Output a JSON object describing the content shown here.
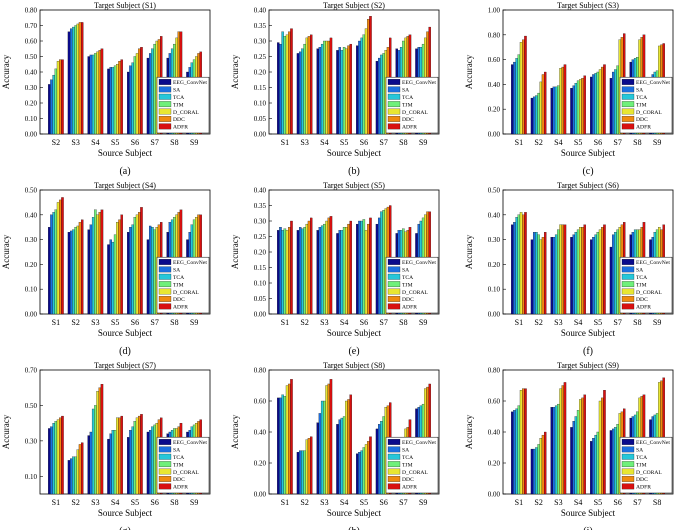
{
  "figure": {
    "y_axis_label": "Accuracy",
    "x_axis_label": "Source Subject",
    "colors": [
      "#0a0a8c",
      "#1c6fe0",
      "#25c7d9",
      "#6ff07a",
      "#e8e632",
      "#f08a10",
      "#d81010"
    ]
  },
  "chart_data": [
    {
      "type": "bar",
      "panel_label": "(a)",
      "title": "Target Subject (S1)",
      "ylim": [
        0,
        0.8
      ],
      "yticks": [
        "0.00",
        "0.10",
        "0.20",
        "0.30",
        "0.40",
        "0.50",
        "0.60",
        "0.70",
        "0.80"
      ],
      "categories": [
        "S2",
        "S3",
        "S4",
        "S5",
        "S6",
        "S7",
        "S8",
        "S9"
      ],
      "series": [
        {
          "name": "EEG_ConvNet",
          "values": [
            0.32,
            0.66,
            0.5,
            0.42,
            0.4,
            0.49,
            0.49,
            0.4
          ]
        },
        {
          "name": "SA",
          "values": [
            0.35,
            0.68,
            0.51,
            0.43,
            0.44,
            0.52,
            0.52,
            0.43
          ]
        },
        {
          "name": "TCA",
          "values": [
            0.38,
            0.69,
            0.51,
            0.43,
            0.46,
            0.55,
            0.55,
            0.46
          ]
        },
        {
          "name": "TJM",
          "values": [
            0.42,
            0.7,
            0.52,
            0.44,
            0.5,
            0.58,
            0.58,
            0.48
          ]
        },
        {
          "name": "D_CORAL",
          "values": [
            0.47,
            0.71,
            0.53,
            0.45,
            0.52,
            0.6,
            0.62,
            0.5
          ]
        },
        {
          "name": "DDC",
          "values": [
            0.48,
            0.72,
            0.54,
            0.47,
            0.55,
            0.61,
            0.66,
            0.52
          ]
        },
        {
          "name": "ADFR",
          "values": [
            0.48,
            0.72,
            0.55,
            0.48,
            0.56,
            0.63,
            0.66,
            0.53
          ]
        }
      ]
    },
    {
      "type": "bar",
      "panel_label": "(b)",
      "title": "Target Subject (S2)",
      "ylim": [
        0,
        0.4
      ],
      "yticks": [
        "0.00",
        "0.05",
        "0.10",
        "0.15",
        "0.20",
        "0.25",
        "0.30",
        "0.35",
        "0.40"
      ],
      "categories": [
        "S1",
        "S3",
        "S4",
        "S5",
        "S6",
        "S7",
        "S8",
        "S9"
      ],
      "series": [
        {
          "name": "EEG_ConvNet",
          "values": [
            0.295,
            0.26,
            0.275,
            0.27,
            0.285,
            0.235,
            0.275,
            0.275
          ]
        },
        {
          "name": "SA",
          "values": [
            0.29,
            0.265,
            0.28,
            0.28,
            0.3,
            0.245,
            0.27,
            0.28
          ]
        },
        {
          "name": "TCA",
          "values": [
            0.33,
            0.275,
            0.29,
            0.27,
            0.31,
            0.255,
            0.28,
            0.28
          ]
        },
        {
          "name": "TJM",
          "values": [
            0.315,
            0.29,
            0.3,
            0.28,
            0.32,
            0.26,
            0.3,
            0.29
          ]
        },
        {
          "name": "D_CORAL",
          "values": [
            0.32,
            0.31,
            0.3,
            0.275,
            0.34,
            0.27,
            0.31,
            0.31
          ]
        },
        {
          "name": "DDC",
          "values": [
            0.33,
            0.315,
            0.3,
            0.285,
            0.37,
            0.28,
            0.315,
            0.33
          ]
        },
        {
          "name": "ADFR",
          "values": [
            0.34,
            0.32,
            0.31,
            0.29,
            0.38,
            0.31,
            0.32,
            0.345
          ]
        }
      ]
    },
    {
      "type": "bar",
      "panel_label": "(c)",
      "title": "Target Subject (S3)",
      "ylim": [
        0,
        1.0
      ],
      "yticks": [
        "0.00",
        "0.20",
        "0.40",
        "0.60",
        "0.80",
        "1.00"
      ],
      "categories": [
        "S1",
        "S2",
        "S4",
        "S5",
        "S6",
        "S7",
        "S8",
        "S9"
      ],
      "series": [
        {
          "name": "EEG_ConvNet",
          "values": [
            0.56,
            0.29,
            0.37,
            0.37,
            0.46,
            0.45,
            0.58,
            0.45
          ]
        },
        {
          "name": "SA",
          "values": [
            0.58,
            0.3,
            0.38,
            0.39,
            0.48,
            0.5,
            0.6,
            0.48
          ]
        },
        {
          "name": "TCA",
          "values": [
            0.61,
            0.31,
            0.38,
            0.41,
            0.49,
            0.52,
            0.61,
            0.5
          ]
        },
        {
          "name": "TJM",
          "values": [
            0.64,
            0.33,
            0.39,
            0.43,
            0.5,
            0.55,
            0.62,
            0.51
          ]
        },
        {
          "name": "D_CORAL",
          "values": [
            0.74,
            0.42,
            0.53,
            0.44,
            0.52,
            0.76,
            0.76,
            0.71
          ]
        },
        {
          "name": "DDC",
          "values": [
            0.76,
            0.48,
            0.54,
            0.45,
            0.54,
            0.78,
            0.78,
            0.72
          ]
        },
        {
          "name": "ADFR",
          "values": [
            0.79,
            0.5,
            0.56,
            0.47,
            0.56,
            0.81,
            0.8,
            0.73
          ]
        }
      ]
    },
    {
      "type": "bar",
      "panel_label": "(d)",
      "title": "Target Subject (S4)",
      "ylim": [
        0,
        0.5
      ],
      "yticks": [
        "0.00",
        "0.10",
        "0.20",
        "0.30",
        "0.40",
        "0.50"
      ],
      "categories": [
        "S1",
        "S2",
        "S3",
        "S5",
        "S6",
        "S7",
        "S8",
        "S9"
      ],
      "series": [
        {
          "name": "EEG_ConvNet",
          "values": [
            0.35,
            0.33,
            0.34,
            0.28,
            0.33,
            0.3,
            0.33,
            0.3
          ]
        },
        {
          "name": "SA",
          "values": [
            0.4,
            0.335,
            0.36,
            0.3,
            0.35,
            0.355,
            0.37,
            0.33
          ]
        },
        {
          "name": "TCA",
          "values": [
            0.41,
            0.34,
            0.39,
            0.29,
            0.36,
            0.35,
            0.38,
            0.36
          ]
        },
        {
          "name": "TJM",
          "values": [
            0.42,
            0.35,
            0.42,
            0.32,
            0.39,
            0.34,
            0.39,
            0.38
          ]
        },
        {
          "name": "D_CORAL",
          "values": [
            0.45,
            0.355,
            0.4,
            0.37,
            0.4,
            0.35,
            0.4,
            0.39
          ]
        },
        {
          "name": "DDC",
          "values": [
            0.46,
            0.37,
            0.41,
            0.38,
            0.41,
            0.36,
            0.41,
            0.4
          ]
        },
        {
          "name": "ADFR",
          "values": [
            0.47,
            0.38,
            0.42,
            0.4,
            0.43,
            0.37,
            0.42,
            0.4
          ]
        }
      ]
    },
    {
      "type": "bar",
      "panel_label": "(e)",
      "title": "Target Subject (S5)",
      "ylim": [
        0,
        0.4
      ],
      "yticks": [
        "0.00",
        "0.05",
        "0.10",
        "0.15",
        "0.20",
        "0.25",
        "0.30",
        "0.35",
        "0.40"
      ],
      "categories": [
        "S1",
        "S2",
        "S3",
        "S4",
        "S6",
        "S7",
        "S8",
        "S9"
      ],
      "series": [
        {
          "name": "EEG_ConvNet",
          "values": [
            0.27,
            0.27,
            0.27,
            0.26,
            0.29,
            0.29,
            0.26,
            0.26
          ]
        },
        {
          "name": "SA",
          "values": [
            0.28,
            0.28,
            0.28,
            0.27,
            0.3,
            0.31,
            0.27,
            0.29
          ]
        },
        {
          "name": "TCA",
          "values": [
            0.27,
            0.275,
            0.285,
            0.27,
            0.3,
            0.33,
            0.27,
            0.3
          ]
        },
        {
          "name": "TJM",
          "values": [
            0.275,
            0.28,
            0.29,
            0.28,
            0.305,
            0.335,
            0.275,
            0.31
          ]
        },
        {
          "name": "D_CORAL",
          "values": [
            0.27,
            0.29,
            0.3,
            0.28,
            0.27,
            0.34,
            0.265,
            0.32
          ]
        },
        {
          "name": "DDC",
          "values": [
            0.28,
            0.3,
            0.31,
            0.29,
            0.29,
            0.345,
            0.27,
            0.33
          ]
        },
        {
          "name": "ADFR",
          "values": [
            0.3,
            0.31,
            0.315,
            0.3,
            0.31,
            0.35,
            0.28,
            0.33
          ]
        }
      ]
    },
    {
      "type": "bar",
      "panel_label": "(f)",
      "title": "Target Subject (S6)",
      "ylim": [
        0,
        0.5
      ],
      "yticks": [
        "0.00",
        "0.10",
        "0.20",
        "0.30",
        "0.40",
        "0.50"
      ],
      "categories": [
        "S1",
        "S2",
        "S3",
        "S4",
        "S5",
        "S7",
        "S8",
        "S9"
      ],
      "series": [
        {
          "name": "EEG_ConvNet",
          "values": [
            0.36,
            0.3,
            0.31,
            0.31,
            0.3,
            0.27,
            0.32,
            0.3
          ]
        },
        {
          "name": "SA",
          "values": [
            0.37,
            0.33,
            0.31,
            0.32,
            0.31,
            0.32,
            0.33,
            0.31
          ]
        },
        {
          "name": "TCA",
          "values": [
            0.39,
            0.33,
            0.32,
            0.33,
            0.32,
            0.33,
            0.34,
            0.33
          ]
        },
        {
          "name": "TJM",
          "values": [
            0.4,
            0.32,
            0.34,
            0.34,
            0.33,
            0.34,
            0.34,
            0.34
          ]
        },
        {
          "name": "D_CORAL",
          "values": [
            0.41,
            0.3,
            0.36,
            0.35,
            0.34,
            0.35,
            0.34,
            0.35
          ]
        },
        {
          "name": "DDC",
          "values": [
            0.4,
            0.31,
            0.36,
            0.35,
            0.35,
            0.36,
            0.35,
            0.34
          ]
        },
        {
          "name": "ADFR",
          "values": [
            0.41,
            0.33,
            0.36,
            0.36,
            0.36,
            0.37,
            0.37,
            0.36
          ]
        }
      ]
    },
    {
      "type": "bar",
      "panel_label": "(g)",
      "title": "Target Subject (S7)",
      "ylim": [
        0,
        0.7
      ],
      "yticks": [
        "0.10",
        "0.30",
        "0.50",
        "0.70"
      ],
      "categories": [
        "S1",
        "S2",
        "S3",
        "S4",
        "S5",
        "S6",
        "S8",
        "S9"
      ],
      "series": [
        {
          "name": "EEG_ConvNet",
          "values": [
            0.37,
            0.19,
            0.33,
            0.31,
            0.32,
            0.35,
            0.34,
            0.35
          ]
        },
        {
          "name": "SA",
          "values": [
            0.38,
            0.2,
            0.35,
            0.34,
            0.36,
            0.36,
            0.35,
            0.36
          ]
        },
        {
          "name": "TCA",
          "values": [
            0.4,
            0.21,
            0.48,
            0.36,
            0.38,
            0.38,
            0.36,
            0.38
          ]
        },
        {
          "name": "TJM",
          "values": [
            0.41,
            0.21,
            0.5,
            0.36,
            0.41,
            0.39,
            0.37,
            0.39
          ]
        },
        {
          "name": "D_CORAL",
          "values": [
            0.42,
            0.25,
            0.58,
            0.43,
            0.43,
            0.4,
            0.37,
            0.4
          ]
        },
        {
          "name": "DDC",
          "values": [
            0.43,
            0.28,
            0.6,
            0.43,
            0.44,
            0.42,
            0.38,
            0.41
          ]
        },
        {
          "name": "ADFR",
          "values": [
            0.44,
            0.29,
            0.62,
            0.44,
            0.45,
            0.43,
            0.4,
            0.42
          ]
        }
      ]
    },
    {
      "type": "bar",
      "panel_label": "(h)",
      "title": "Target Subject (S8)",
      "ylim": [
        0,
        0.8
      ],
      "yticks": [
        "0.00",
        "0.20",
        "0.40",
        "0.60",
        "0.80"
      ],
      "categories": [
        "S1",
        "S2",
        "S3",
        "S4",
        "S5",
        "S6",
        "S7",
        "S9"
      ],
      "series": [
        {
          "name": "EEG_ConvNet",
          "values": [
            0.62,
            0.27,
            0.46,
            0.45,
            0.26,
            0.42,
            0.19,
            0.55
          ]
        },
        {
          "name": "SA",
          "values": [
            0.62,
            0.28,
            0.52,
            0.48,
            0.27,
            0.45,
            0.2,
            0.56
          ]
        },
        {
          "name": "TCA",
          "values": [
            0.64,
            0.28,
            0.6,
            0.49,
            0.28,
            0.47,
            0.2,
            0.57
          ]
        },
        {
          "name": "TJM",
          "values": [
            0.63,
            0.28,
            0.6,
            0.5,
            0.3,
            0.5,
            0.21,
            0.58
          ]
        },
        {
          "name": "D_CORAL",
          "values": [
            0.7,
            0.35,
            0.7,
            0.6,
            0.32,
            0.56,
            0.42,
            0.68
          ]
        },
        {
          "name": "DDC",
          "values": [
            0.71,
            0.36,
            0.71,
            0.61,
            0.34,
            0.57,
            0.43,
            0.69
          ]
        },
        {
          "name": "ADFR",
          "values": [
            0.74,
            0.37,
            0.74,
            0.64,
            0.37,
            0.59,
            0.48,
            0.71
          ]
        }
      ]
    },
    {
      "type": "bar",
      "panel_label": "(i)",
      "title": "Target Subject (S9)",
      "ylim": [
        0,
        0.8
      ],
      "yticks": [
        "0.00",
        "0.20",
        "0.40",
        "0.60",
        "0.80"
      ],
      "categories": [
        "S1",
        "S2",
        "S3",
        "S4",
        "S5",
        "S6",
        "S7",
        "S8"
      ],
      "series": [
        {
          "name": "EEG_ConvNet",
          "values": [
            0.53,
            0.29,
            0.56,
            0.43,
            0.34,
            0.41,
            0.49,
            0.48
          ]
        },
        {
          "name": "SA",
          "values": [
            0.54,
            0.29,
            0.56,
            0.47,
            0.36,
            0.42,
            0.5,
            0.5
          ]
        },
        {
          "name": "TCA",
          "values": [
            0.55,
            0.3,
            0.57,
            0.5,
            0.38,
            0.43,
            0.51,
            0.51
          ]
        },
        {
          "name": "TJM",
          "values": [
            0.57,
            0.32,
            0.58,
            0.54,
            0.4,
            0.45,
            0.53,
            0.52
          ]
        },
        {
          "name": "D_CORAL",
          "values": [
            0.67,
            0.36,
            0.68,
            0.61,
            0.6,
            0.52,
            0.62,
            0.72
          ]
        },
        {
          "name": "DDC",
          "values": [
            0.68,
            0.38,
            0.7,
            0.62,
            0.62,
            0.53,
            0.63,
            0.73
          ]
        },
        {
          "name": "ADFR",
          "values": [
            0.68,
            0.4,
            0.72,
            0.64,
            0.67,
            0.55,
            0.64,
            0.75
          ]
        }
      ]
    }
  ]
}
